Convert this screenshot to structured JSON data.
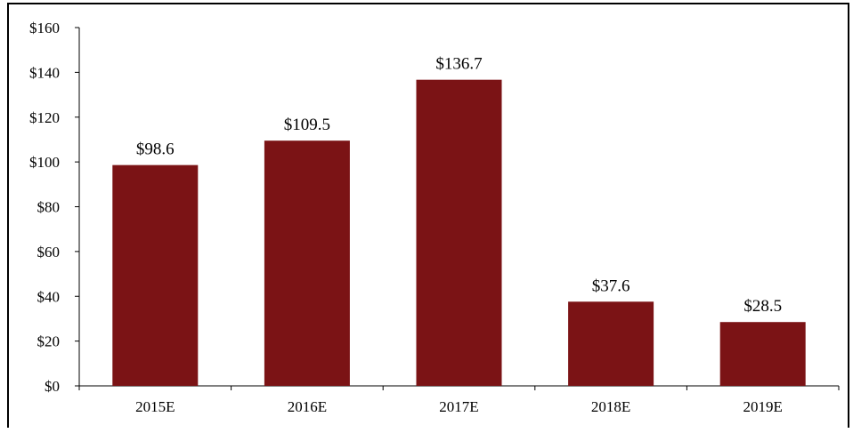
{
  "colors": {
    "bar": "#7B1315",
    "axis": "#000000",
    "frame": "#000000"
  },
  "chart_data": {
    "type": "bar",
    "title": "",
    "xlabel": "",
    "ylabel": "",
    "categories": [
      "2015E",
      "2016E",
      "2017E",
      "2018E",
      "2019E"
    ],
    "values": [
      98.6,
      109.5,
      136.7,
      37.6,
      28.5
    ],
    "data_labels": [
      "$98.6",
      "$109.5",
      "$136.7",
      "$37.6",
      "$28.5"
    ],
    "ylim": [
      0,
      160
    ],
    "yticks": [
      0,
      20,
      40,
      60,
      80,
      100,
      120,
      140,
      160
    ],
    "ytick_labels": [
      "$0",
      "$20",
      "$40",
      "$60",
      "$80",
      "$100",
      "$120",
      "$140",
      "$160"
    ],
    "grid": false,
    "legend": "none"
  }
}
